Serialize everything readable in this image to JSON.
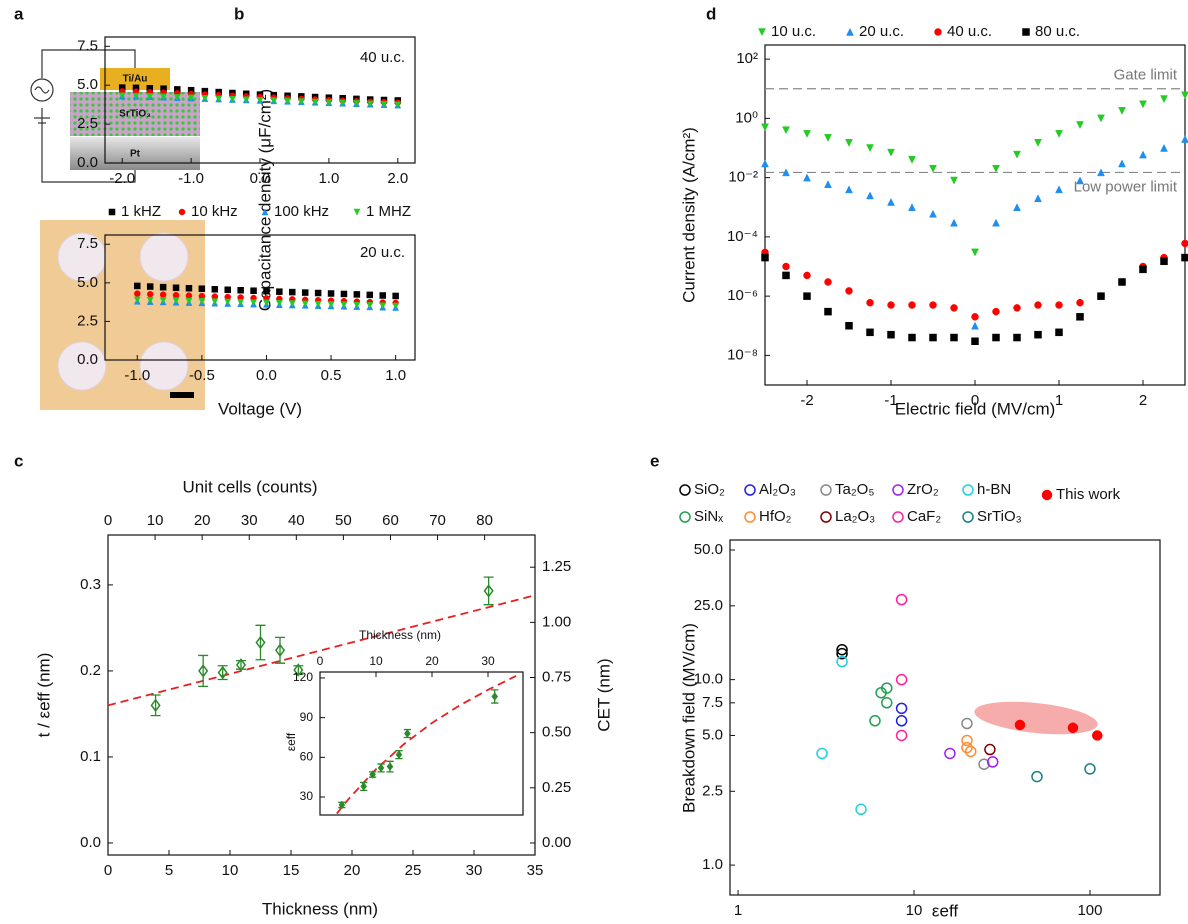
{
  "panel_labels": [
    "a",
    "b",
    "c",
    "d",
    "e"
  ],
  "schematic": {
    "labels": [
      "Ti/Au",
      "SrTiO₃",
      "Pt"
    ]
  },
  "chart_data": [
    {
      "type": "scatter",
      "y_label": "Capacitance density (μF/cm²)",
      "annotation": "40 u.c.",
      "x": [
        -2,
        -1.8,
        -1.6,
        -1.4,
        -1.2,
        -1,
        -0.8,
        -0.6,
        -0.4,
        -0.2,
        0,
        0.2,
        0.4,
        0.6,
        0.8,
        1,
        1.2,
        1.4,
        1.6,
        1.8,
        2
      ],
      "xlim": [
        -2.25,
        2.25
      ],
      "ylim": [
        0,
        8.1
      ],
      "xticks": [
        {
          "value": -2,
          "label": "-2.0"
        },
        {
          "value": -1,
          "label": "-1.0"
        },
        {
          "value": 0,
          "label": "0.0"
        },
        {
          "value": 1,
          "label": "1.0"
        },
        {
          "value": 2,
          "label": "2.0"
        }
      ],
      "yticks": [
        {
          "value": 0,
          "label": "0.0"
        },
        2.5,
        {
          "value": 5,
          "label": "5.0"
        },
        7.5
      ],
      "series": [
        {
          "name": "1 kHZ",
          "color": "#000000",
          "marker": "square",
          "values": [
            4.85,
            4.83,
            4.8,
            4.78,
            4.73,
            4.68,
            4.62,
            4.56,
            4.5,
            4.45,
            4.4,
            4.36,
            4.32,
            4.28,
            4.24,
            4.2,
            4.16,
            4.12,
            4.08,
            4.05,
            4.02
          ]
        },
        {
          "name": "10 kHz",
          "color": "#ff0000",
          "marker": "circle",
          "values": [
            4.6,
            4.58,
            4.55,
            4.52,
            4.48,
            4.44,
            4.4,
            4.36,
            4.32,
            4.28,
            4.24,
            4.2,
            4.16,
            4.12,
            4.08,
            4.04,
            4.0,
            3.97,
            3.94,
            3.91,
            3.88
          ]
        },
        {
          "name": "100 kHz",
          "color": "#1e8ef0",
          "marker": "triangle-up",
          "values": [
            4.3,
            4.28,
            4.26,
            4.23,
            4.2,
            4.17,
            4.14,
            4.11,
            4.08,
            4.05,
            4.02,
            3.99,
            3.96,
            3.93,
            3.9,
            3.87,
            3.84,
            3.81,
            3.78,
            3.75,
            3.72
          ]
        },
        {
          "name": "1 MHZ",
          "color": "#22cc22",
          "marker": "triangle-down",
          "values": [
            4.32,
            4.3,
            4.28,
            4.25,
            4.22,
            4.19,
            4.16,
            4.13,
            4.1,
            4.07,
            4.04,
            4.01,
            3.98,
            3.95,
            3.92,
            3.89,
            3.86,
            3.83,
            3.8,
            3.77,
            3.74
          ]
        }
      ]
    },
    {
      "type": "scatter",
      "x_label": "Voltage (V)",
      "annotation": "20 u.c.",
      "x": [
        -1,
        -0.9,
        -0.8,
        -0.7,
        -0.6,
        -0.5,
        -0.4,
        -0.3,
        -0.2,
        -0.1,
        0,
        0.1,
        0.2,
        0.3,
        0.4,
        0.5,
        0.6,
        0.7,
        0.8,
        0.9,
        1
      ],
      "xlim": [
        -1.25,
        1.15
      ],
      "ylim": [
        0,
        8.1
      ],
      "xticks": [
        {
          "value": -1,
          "label": "-1.0"
        },
        -0.5,
        {
          "value": 0,
          "label": "0.0"
        },
        0.5,
        {
          "value": 1,
          "label": "1.0"
        }
      ],
      "yticks": [
        {
          "value": 0,
          "label": "0.0"
        },
        2.5,
        {
          "value": 5,
          "label": "5.0"
        },
        7.5
      ],
      "series": [
        {
          "color": "#000000",
          "marker": "square",
          "values": [
            4.8,
            4.76,
            4.72,
            4.68,
            4.65,
            4.62,
            4.58,
            4.55,
            4.52,
            4.49,
            4.46,
            4.43,
            4.4,
            4.37,
            4.34,
            4.31,
            4.28,
            4.25,
            4.22,
            4.18,
            4.15
          ]
        },
        {
          "color": "#ff0000",
          "marker": "circle",
          "values": [
            4.3,
            4.26,
            4.23,
            4.2,
            4.17,
            4.14,
            4.11,
            4.08,
            4.05,
            4.02,
            3.99,
            3.96,
            3.93,
            3.9,
            3.87,
            3.84,
            3.81,
            3.78,
            3.75,
            3.72,
            3.7
          ]
        },
        {
          "color": "#1e8ef0",
          "marker": "triangle-up",
          "values": [
            3.8,
            3.78,
            3.76,
            3.74,
            3.72,
            3.7,
            3.68,
            3.66,
            3.64,
            3.62,
            3.6,
            3.58,
            3.56,
            3.54,
            3.52,
            3.5,
            3.48,
            3.46,
            3.44,
            3.42,
            3.4
          ]
        },
        {
          "color": "#22cc22",
          "marker": "triangle-down",
          "values": [
            3.9,
            3.88,
            3.86,
            3.84,
            3.82,
            3.8,
            3.78,
            3.76,
            3.74,
            3.72,
            3.7,
            3.68,
            3.66,
            3.64,
            3.62,
            3.6,
            3.58,
            3.56,
            3.54,
            3.52,
            3.5
          ]
        }
      ]
    },
    {
      "type": "scatter",
      "x_label": "Electric field (MV/cm)",
      "y_label": "Current density (A/cm²)",
      "yscale": "log",
      "x": [
        -2.5,
        -2.25,
        -2,
        -1.75,
        -1.5,
        -1.25,
        -1,
        -0.75,
        -0.5,
        -0.25,
        0,
        0.25,
        0.5,
        0.75,
        1,
        1.25,
        1.5,
        1.75,
        2,
        2.25,
        2.5
      ],
      "xlim": [
        -2.5,
        2.5
      ],
      "ylim": [
        1e-09,
        300
      ],
      "xticks": [
        -2,
        -1,
        0,
        1,
        2
      ],
      "yticks": [
        {
          "value": 1e-08,
          "label": "10⁻⁸"
        },
        {
          "value": 1e-06,
          "label": "10⁻⁶"
        },
        {
          "value": 0.0001,
          "label": "10⁻⁴"
        },
        {
          "value": 0.01,
          "label": "10⁻²"
        },
        {
          "value": 1,
          "label": "10⁰"
        },
        {
          "value": 100,
          "label": "10²"
        }
      ],
      "reference_lines": [
        {
          "value": 10,
          "label": "Gate limit"
        },
        {
          "value": 0.015,
          "label": "Low power limit"
        }
      ],
      "series": [
        {
          "name": "10 u.c.",
          "color": "#22cc22",
          "marker": "triangle-down",
          "values": [
            0.5,
            0.4,
            0.3,
            0.22,
            0.15,
            0.1,
            0.07,
            0.04,
            0.02,
            0.008,
            3e-05,
            0.02,
            0.06,
            0.15,
            0.3,
            0.6,
            1,
            1.8,
            3,
            4.5,
            6
          ]
        },
        {
          "name": "20 u.c.",
          "color": "#1e8ef0",
          "marker": "triangle-up",
          "values": [
            0.03,
            0.015,
            0.01,
            0.006,
            0.004,
            0.0025,
            0.0015,
            0.001,
            0.0006,
            0.0003,
            1e-07,
            0.0003,
            0.001,
            0.002,
            0.004,
            0.008,
            0.015,
            0.03,
            0.06,
            0.1,
            0.2
          ]
        },
        {
          "name": "40 u.c.",
          "color": "#ff0000",
          "marker": "circle",
          "values": [
            3e-05,
            1e-05,
            5e-06,
            3e-06,
            1.5e-06,
            6e-07,
            5e-07,
            5e-07,
            5e-07,
            4e-07,
            2e-07,
            3e-07,
            4e-07,
            5e-07,
            5e-07,
            6e-07,
            1e-06,
            3e-06,
            1e-05,
            2e-05,
            6e-05
          ]
        },
        {
          "name": "80 u.c.",
          "color": "#000000",
          "marker": "square",
          "values": [
            2e-05,
            5e-06,
            1e-06,
            3e-07,
            1e-07,
            6e-08,
            5e-08,
            4e-08,
            4e-08,
            4e-08,
            3e-08,
            4e-08,
            4e-08,
            5e-08,
            6e-08,
            2e-07,
            1e-06,
            3e-06,
            8e-06,
            1.5e-05,
            2e-05
          ]
        }
      ]
    },
    {
      "type": "errorbar",
      "x_label": "Thickness (nm)",
      "y_label": "t / εeff (nm)",
      "y2_label": "CET (nm)",
      "x2_label": "Unit cells (counts)",
      "x": [
        3.9,
        7.8,
        9.4,
        10.9,
        12.5,
        14.1,
        15.6,
        31.2
      ],
      "values": [
        0.16,
        0.2,
        0.198,
        0.207,
        0.233,
        0.224,
        0.201,
        0.293
      ],
      "errors": [
        0.012,
        0.018,
        0.008,
        0.005,
        0.02,
        0.015,
        0.005,
        0.016
      ],
      "color": "#2a8a2a",
      "marker": "diamond",
      "filled": false,
      "fit": {
        "x": [
          0,
          35
        ],
        "y": [
          0.16,
          0.288
        ],
        "color": "#e82020"
      },
      "xlim": [
        0,
        35
      ],
      "ylim": [
        -0.014,
        0.358
      ],
      "y2lim": [
        -0.0546,
        1.396
      ],
      "x2lim": [
        0,
        90.7
      ],
      "xticks": [
        0,
        5,
        10,
        15,
        20,
        25,
        30,
        35
      ],
      "yticks": [
        {
          "value": 0,
          "label": "0.0"
        },
        0.1,
        0.2,
        0.3
      ],
      "y2ticks": [
        {
          "value": 0,
          "label": "0.00"
        },
        0.25,
        {
          "value": 0.5,
          "label": "0.50"
        },
        0.75,
        {
          "value": 1,
          "label": "1.00"
        },
        1.25
      ],
      "x2ticks": [
        0,
        10,
        20,
        30,
        40,
        50,
        60,
        70,
        80
      ]
    },
    {
      "type": "errorbar",
      "x_label": "Thickness (nm)",
      "y_label": "εeff",
      "x": [
        3.9,
        7.8,
        9.4,
        10.9,
        12.5,
        14.1,
        15.6,
        31.2
      ],
      "values": [
        24,
        38,
        47,
        52,
        53,
        62,
        78,
        106
      ],
      "errors": [
        2,
        3,
        2,
        3,
        4,
        3,
        3,
        5
      ],
      "color": "#2a8a2a",
      "marker": "diamond",
      "filled": true,
      "fit": {
        "x": [
          3,
          5,
          10,
          15,
          20,
          25,
          30,
          35
        ],
        "y": [
          17.5,
          28,
          51,
          70,
          86,
          99.4,
          111,
          121.5
        ],
        "color": "#e82020"
      },
      "xlim": [
        0,
        36.25
      ],
      "ylim": [
        16.4,
        124.5
      ],
      "xticks": [
        0,
        10,
        20,
        30
      ],
      "yticks": [
        30,
        60,
        90,
        120
      ]
    },
    {
      "type": "scatter",
      "x_label": "εeff",
      "y_label": "Breakdown field (MV/cm)",
      "xscale": "log",
      "yscale": "log",
      "xlim": [
        0.9,
        250
      ],
      "ylim": [
        0.69,
        56.6
      ],
      "xticks": [
        1,
        10,
        100
      ],
      "yticks": [
        {
          "value": 1,
          "label": "1.0"
        },
        2.5,
        {
          "value": 5,
          "label": "5.0"
        },
        7.5,
        {
          "value": 10,
          "label": "10.0"
        },
        {
          "value": 25,
          "label": "25.0"
        },
        {
          "value": 50,
          "label": "50.0"
        }
      ],
      "series": [
        {
          "name": "SiO₂",
          "color": "#000000",
          "marker": "circle",
          "filled": false,
          "x": [
            3.9,
            3.9
          ],
          "values": [
            14.5,
            13.8
          ]
        },
        {
          "name": "Al₂O₃",
          "color": "#2020e0",
          "marker": "circle",
          "filled": false,
          "x": [
            8.5,
            8.5
          ],
          "values": [
            7,
            6
          ]
        },
        {
          "name": "Ta₂O₅",
          "color": "#888888",
          "marker": "circle",
          "filled": false,
          "x": [
            20,
            25
          ],
          "values": [
            5.8,
            3.5
          ]
        },
        {
          "name": "ZrO₂",
          "color": "#a020f0",
          "marker": "circle",
          "filled": false,
          "x": [
            16,
            28
          ],
          "values": [
            4,
            3.6
          ]
        },
        {
          "name": "h-BN",
          "color": "#20d0e0",
          "marker": "circle",
          "filled": false,
          "x": [
            3,
            3.9,
            5
          ],
          "values": [
            4,
            12.5,
            2
          ]
        },
        {
          "name": "SiNₓ",
          "color": "#20a050",
          "marker": "circle",
          "filled": false,
          "x": [
            6,
            6.5,
            7,
            7
          ],
          "values": [
            6,
            8.5,
            7.5,
            9
          ]
        },
        {
          "name": "HfO₂",
          "color": "#ff8c30",
          "marker": "circle",
          "filled": false,
          "x": [
            20,
            20,
            21
          ],
          "values": [
            4.7,
            4.3,
            4.1
          ]
        },
        {
          "name": "La₂O₃",
          "color": "#800000",
          "marker": "circle",
          "filled": false,
          "x": [
            27
          ],
          "values": [
            4.2
          ]
        },
        {
          "name": "CaF₂",
          "color": "#ff20a0",
          "marker": "circle",
          "filled": false,
          "x": [
            8.5,
            8.5,
            8.5
          ],
          "values": [
            27,
            10,
            5
          ]
        },
        {
          "name": "SrTiO₃",
          "color": "#1a8080",
          "marker": "circle",
          "filled": false,
          "x": [
            50,
            100
          ],
          "values": [
            3,
            3.3
          ]
        },
        {
          "name": "This work",
          "color": "#ff0000",
          "marker": "circle",
          "filled": true,
          "x": [
            40,
            80,
            110
          ],
          "values": [
            5.7,
            5.5,
            5
          ]
        }
      ]
    }
  ]
}
